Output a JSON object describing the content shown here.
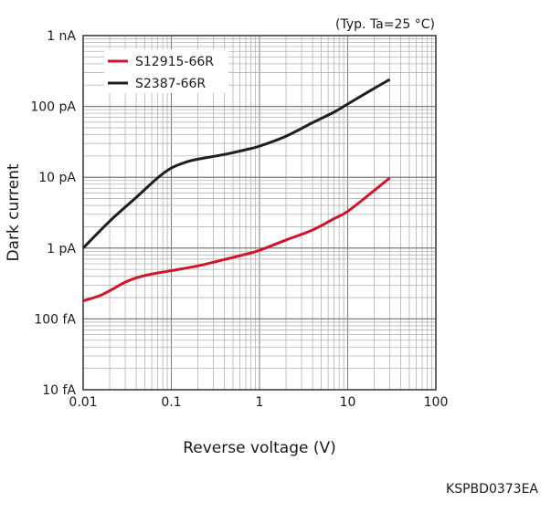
{
  "chart_data": {
    "type": "line",
    "note": "(Typ. Ta=25 °C)",
    "xlabel": "Reverse voltage (V)",
    "ylabel": "Dark current",
    "xscale": "log",
    "yscale": "log",
    "xlim": [
      0.01,
      100
    ],
    "ylim": [
      1e-14,
      1e-09
    ],
    "grid": true,
    "legend_position": "top-left",
    "x_ticks": [
      {
        "value": 0.01,
        "label": "0.01"
      },
      {
        "value": 0.1,
        "label": "0.1"
      },
      {
        "value": 1,
        "label": "1"
      },
      {
        "value": 10,
        "label": "10"
      },
      {
        "value": 100,
        "label": "100"
      }
    ],
    "y_ticks": [
      {
        "value": 1e-14,
        "label": "10 fA"
      },
      {
        "value": 1e-13,
        "label": "100 fA"
      },
      {
        "value": 1e-12,
        "label": "1 pA"
      },
      {
        "value": 1e-11,
        "label": "10 pA"
      },
      {
        "value": 1e-10,
        "label": "100 pA"
      },
      {
        "value": 1e-09,
        "label": "1 nA"
      }
    ],
    "series": [
      {
        "name": "S12915-66R",
        "color": "#d0142c",
        "x": [
          0.01,
          0.015,
          0.02,
          0.03,
          0.04,
          0.06,
          0.1,
          0.2,
          0.4,
          0.7,
          1,
          2,
          4,
          7,
          10,
          20,
          30
        ],
        "y": [
          1.8e-13,
          2.1e-13,
          2.5e-13,
          3.3e-13,
          3.8e-13,
          4.3e-13,
          4.8e-13,
          5.6e-13,
          6.9e-13,
          8.2e-13,
          9.3e-13,
          1.3e-12,
          1.8e-12,
          2.6e-12,
          3.3e-12,
          6.5e-12,
          9.8e-12
        ]
      },
      {
        "name": "S2387-66R",
        "color": "#1f1f1f",
        "x": [
          0.01,
          0.02,
          0.04,
          0.07,
          0.1,
          0.15,
          0.2,
          0.4,
          0.7,
          1,
          2,
          4,
          7,
          10,
          20,
          30
        ],
        "y": [
          1e-12,
          2.4e-12,
          5.2e-12,
          9.8e-12,
          1.35e-11,
          1.65e-11,
          1.8e-11,
          2.1e-11,
          2.45e-11,
          2.75e-11,
          3.8e-11,
          5.9e-11,
          8.3e-11,
          1.08e-10,
          1.8e-10,
          2.4e-10
        ]
      }
    ]
  },
  "footer": {
    "code": "KSPBD0373EA"
  }
}
